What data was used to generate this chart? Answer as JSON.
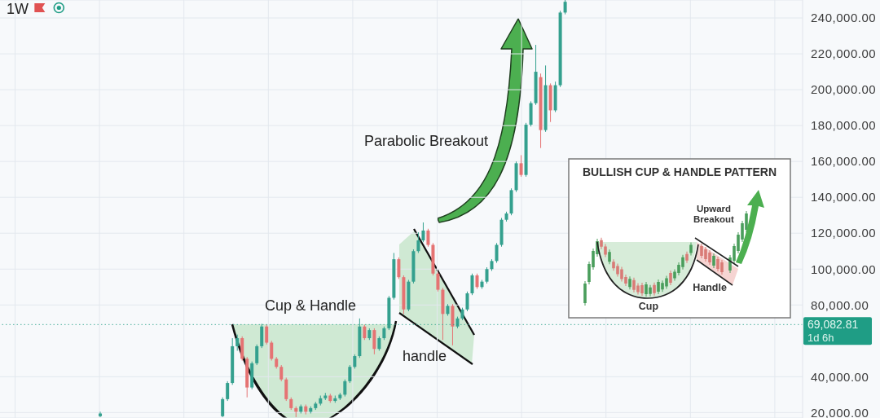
{
  "chart_data": {
    "type": "candlestick",
    "title": "1W",
    "categories": [
      null,
      null,
      null,
      null,
      null,
      null,
      null,
      null,
      null,
      null,
      null,
      null,
      null,
      null,
      null,
      null,
      null,
      null,
      null,
      null,
      null,
      null,
      null,
      null,
      null,
      null,
      null,
      null,
      null,
      null,
      null,
      null,
      null,
      null,
      null,
      null,
      null,
      null,
      null,
      null,
      null,
      null,
      null,
      null,
      null,
      null,
      null,
      null,
      null,
      null,
      null,
      null,
      null,
      null,
      null,
      null,
      null,
      null,
      null,
      null,
      null,
      null,
      null,
      null,
      null,
      null,
      null,
      null,
      null,
      null,
      null,
      null,
      null,
      null,
      null,
      null,
      null,
      null,
      null,
      null,
      null,
      null,
      null,
      null,
      null,
      null,
      null,
      null,
      null,
      null,
      null,
      null,
      null,
      null,
      null,
      null,
      null,
      null,
      null,
      null,
      null,
      null,
      null,
      null,
      null,
      null,
      null,
      null,
      null,
      null,
      null,
      null,
      null,
      null,
      null,
      null,
      null,
      null,
      null,
      null,
      null,
      null,
      null,
      null,
      null,
      null,
      null,
      null,
      null,
      null,
      null,
      null,
      null,
      null,
      null,
      null,
      null,
      null,
      null,
      null,
      null,
      null,
      null,
      null,
      null,
      null,
      null,
      null,
      null,
      null,
      null,
      null,
      null,
      null,
      null,
      null,
      null,
      null,
      null,
      null,
      null,
      null,
      null,
      null
    ],
    "ohlc": [
      null,
      null,
      null,
      null,
      null,
      null,
      null,
      null,
      null,
      null,
      null,
      null,
      null,
      null,
      null,
      null,
      null,
      null,
      null,
      null,
      [
        18000,
        20500,
        17500,
        19500
      ],
      null,
      null,
      null,
      null,
      null,
      null,
      null,
      null,
      null,
      null,
      null,
      null,
      null,
      null,
      null,
      null,
      null,
      null,
      null,
      null,
      null,
      null,
      null,
      null,
      [
        18000,
        28500,
        17500,
        27500
      ],
      [
        27500,
        37500,
        26500,
        36500
      ],
      [
        36500,
        61500,
        35500,
        57000
      ],
      [
        57000,
        63500,
        54500,
        61500
      ],
      [
        61500,
        62500,
        49000,
        50000
      ],
      [
        50000,
        51000,
        28500,
        34000
      ],
      [
        34000,
        48500,
        33000,
        47500
      ],
      [
        47500,
        58000,
        46500,
        57000
      ],
      [
        57000,
        69500,
        56000,
        68000
      ],
      [
        68000,
        69000,
        58000,
        59000
      ],
      [
        59000,
        60000,
        49000,
        50000
      ],
      [
        50000,
        51000,
        44500,
        45500
      ],
      [
        45500,
        46500,
        37500,
        38500
      ],
      [
        38500,
        39500,
        26500,
        27500
      ],
      [
        27500,
        28500,
        21500,
        22500
      ],
      [
        22500,
        23500,
        17500,
        20500
      ],
      [
        20500,
        24500,
        19500,
        23500
      ],
      [
        23500,
        24500,
        19000,
        20500
      ],
      [
        20500,
        23500,
        19500,
        22500
      ],
      [
        22500,
        26000,
        21500,
        25000
      ],
      [
        25000,
        29500,
        24000,
        28000
      ],
      [
        28000,
        31000,
        27000,
        29500
      ],
      [
        29500,
        30500,
        25500,
        26500
      ],
      [
        26500,
        29500,
        25500,
        28000
      ],
      [
        28000,
        31000,
        27000,
        30000
      ],
      [
        30000,
        38500,
        29000,
        37500
      ],
      [
        37500,
        46500,
        36500,
        45500
      ],
      [
        45500,
        52500,
        44500,
        51500
      ],
      [
        51500,
        72500,
        50500,
        68000
      ],
      [
        68000,
        69000,
        60500,
        61500
      ],
      [
        61500,
        67000,
        60500,
        66000
      ],
      [
        66000,
        67000,
        52500,
        55500
      ],
      [
        55500,
        62500,
        54500,
        61500
      ],
      [
        61500,
        68000,
        60500,
        67000
      ],
      [
        67000,
        85000,
        66000,
        84000
      ],
      [
        84000,
        109000,
        83000,
        105500
      ],
      [
        105500,
        106500,
        94500,
        95500
      ],
      [
        95500,
        96500,
        75000,
        77500
      ],
      [
        77500,
        94000,
        76500,
        93000
      ],
      [
        93000,
        111000,
        92000,
        110000
      ],
      [
        110000,
        120500,
        109000,
        116000
      ],
      [
        116000,
        126000,
        115000,
        121500
      ],
      [
        121500,
        122500,
        112500,
        113500
      ],
      [
        113500,
        114500,
        96500,
        97500
      ],
      [
        97500,
        98500,
        87500,
        88500
      ],
      [
        88500,
        89500,
        60500,
        75000
      ],
      [
        75000,
        80500,
        74000,
        79500
      ],
      [
        79500,
        80500,
        57500,
        68000
      ],
      [
        68000,
        73500,
        67000,
        72500
      ],
      [
        72500,
        78500,
        71500,
        77500
      ],
      [
        77500,
        87500,
        76500,
        86500
      ],
      [
        86500,
        97500,
        85500,
        96500
      ],
      [
        96500,
        97500,
        89000,
        90000
      ],
      [
        90000,
        94000,
        89000,
        93000
      ],
      [
        93000,
        101000,
        92000,
        100000
      ],
      [
        100000,
        105500,
        99000,
        104500
      ],
      [
        104500,
        114500,
        103500,
        113500
      ],
      [
        113500,
        128500,
        112500,
        127500
      ],
      [
        127500,
        132000,
        126500,
        131000
      ],
      [
        131000,
        145000,
        130000,
        144000
      ],
      [
        144000,
        160000,
        143000,
        159000
      ],
      [
        159000,
        163500,
        151500,
        152500
      ],
      [
        152500,
        181500,
        151500,
        180500
      ],
      [
        180500,
        193500,
        179500,
        192500
      ],
      [
        192500,
        225000,
        191500,
        210000
      ],
      [
        207000,
        209000,
        167500,
        177500
      ],
      [
        177500,
        213500,
        176500,
        202500
      ],
      [
        202500,
        203500,
        182000,
        188500
      ],
      [
        188500,
        204500,
        187500,
        202500
      ],
      [
        202500,
        244000,
        201500,
        243000
      ],
      [
        243000,
        250000,
        242000,
        249000
      ],
      null,
      null,
      null,
      null,
      null,
      null,
      null,
      null,
      null,
      null,
      null,
      null,
      null,
      null,
      null,
      null,
      null,
      null,
      null,
      null,
      null,
      null,
      null,
      null,
      null,
      null,
      null,
      null,
      null,
      null,
      null,
      null,
      null,
      null,
      null,
      null,
      null,
      null,
      null,
      null,
      null,
      null,
      null,
      null,
      null,
      null,
      null,
      null
    ],
    "colors": [
      null,
      null,
      null,
      null,
      null,
      null,
      null,
      null,
      null,
      null,
      null,
      null,
      null,
      null,
      null,
      null,
      null,
      null,
      null,
      null,
      "#34a08e",
      null,
      null,
      null,
      null,
      null,
      null,
      null,
      null,
      null,
      null,
      null,
      null,
      null,
      null,
      null,
      null,
      null,
      null,
      null,
      null,
      null,
      null,
      null,
      null,
      "#34a08e",
      "#34a08e",
      "#34a08e",
      "#34a08e",
      "#e57373",
      "#e57373",
      "#34a08e",
      "#34a08e",
      "#34a08e",
      "#e57373",
      "#e57373",
      "#e57373",
      "#e57373",
      "#e57373",
      "#e57373",
      "#e57373",
      "#34a08e",
      "#e57373",
      "#34a08e",
      "#34a08e",
      "#34a08e",
      "#34a08e",
      "#e57373",
      "#34a08e",
      "#34a08e",
      "#34a08e",
      "#34a08e",
      "#34a08e",
      "#34a08e",
      "#e57373",
      "#34a08e",
      "#e57373",
      "#34a08e",
      "#34a08e",
      "#34a08e",
      "#34a08e",
      "#e57373",
      "#e57373",
      "#34a08e",
      "#34a08e",
      "#34a08e",
      "#34a08e",
      "#e57373",
      "#e57373",
      "#e57373",
      "#e57373",
      "#34a08e",
      "#e57373",
      "#34a08e",
      "#34a08e",
      "#34a08e",
      "#34a08e",
      "#e57373",
      "#34a08e",
      "#34a08e",
      "#34a08e",
      "#34a08e",
      "#34a08e",
      "#34a08e",
      "#34a08e",
      "#34a08e",
      "#e57373",
      "#34a08e",
      "#34a08e",
      "#34a08e",
      "#e57373",
      "#34a08e",
      "#e57373",
      "#34a08e",
      "#34a08e",
      "#34a08e",
      null,
      null,
      null,
      null,
      null,
      null,
      null,
      null,
      null,
      null,
      null,
      null,
      null,
      null,
      null,
      null,
      null,
      null,
      null,
      null,
      null,
      null,
      null,
      null,
      null,
      null,
      null,
      null,
      null,
      null,
      null,
      null,
      null,
      null,
      null,
      null,
      null,
      null,
      null,
      null,
      null,
      null,
      null,
      null,
      null,
      null,
      null,
      null
    ],
    "ylim": [
      17000,
      250000
    ],
    "yticks": [
      {
        "value": 20000,
        "label": "20,000.00"
      },
      {
        "value": 40000,
        "label": "40,000.00"
      },
      {
        "value": 80000,
        "label": "80,000.00"
      },
      {
        "value": 100000,
        "label": "100,000.00"
      },
      {
        "value": 120000,
        "label": "120,000.00"
      },
      {
        "value": 140000,
        "label": "140,000.00"
      },
      {
        "value": 160000,
        "label": "160,000.00"
      },
      {
        "value": 180000,
        "label": "180,000.00"
      },
      {
        "value": 200000,
        "label": "200,000.00"
      },
      {
        "value": 220000,
        "label": "220,000.00"
      },
      {
        "value": 240000,
        "label": "240,000.00"
      }
    ],
    "grid": true,
    "tick_labels": "y",
    "ref_lines": [
      {
        "axis": "y",
        "value": 69082.81,
        "label": "69,082.81",
        "color": "#1f9d85",
        "line_style": "dotted"
      }
    ],
    "annotations": [
      "Cup & Handle",
      "handle",
      "Parabolic Breakout",
      "1d 6h",
      "BULLISH CUP & HANDLE PATTERN",
      "Upward Breakout",
      "Handle",
      "Cup"
    ]
  }
}
